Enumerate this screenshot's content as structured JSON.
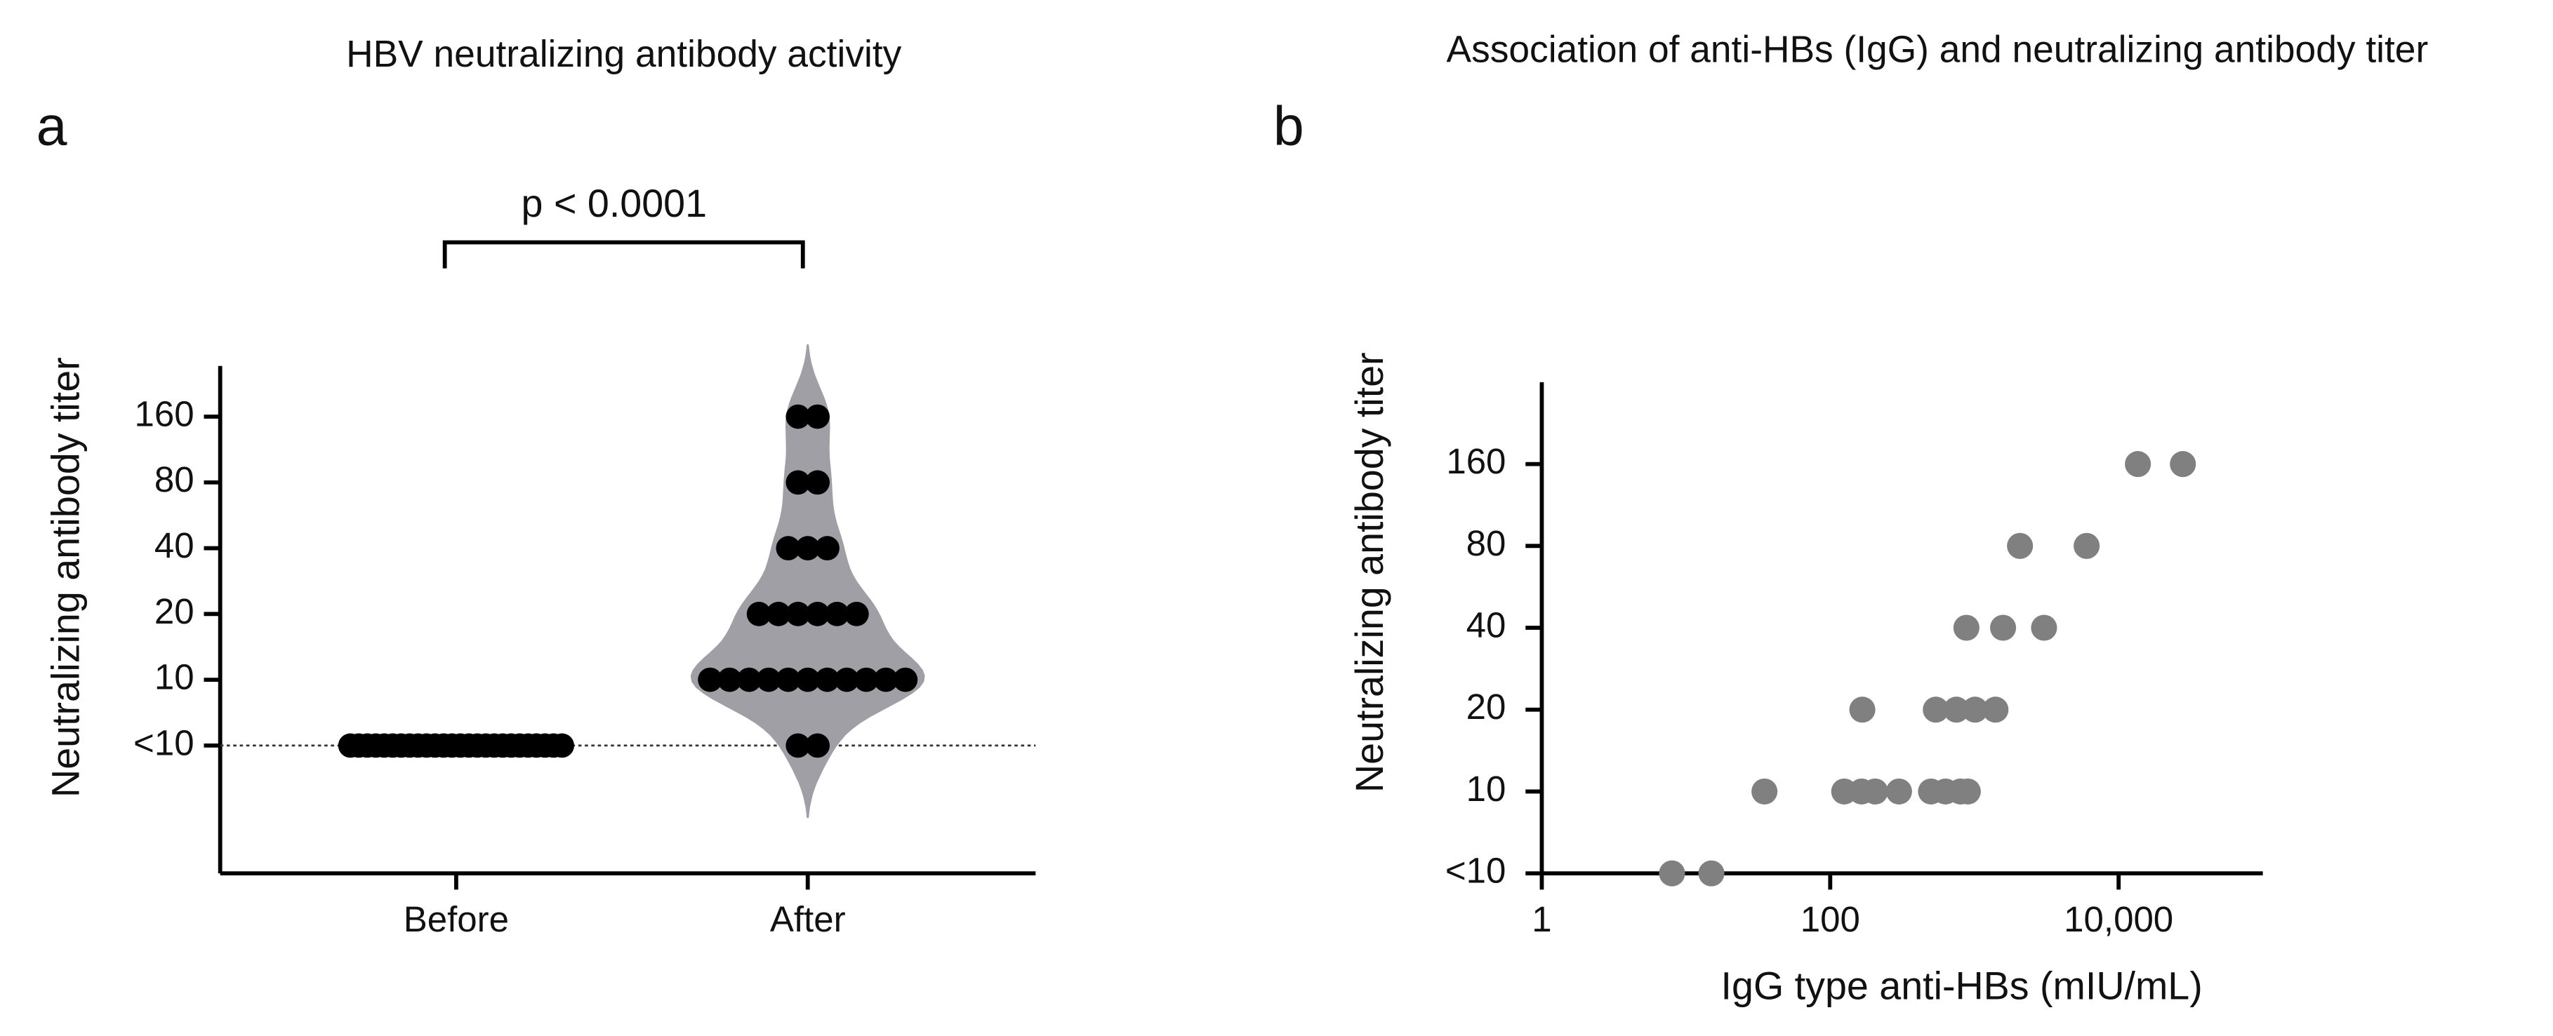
{
  "chart_data": [
    {
      "type": "dot",
      "panel": "a",
      "title": "HBV neutralizing antibody activity",
      "ylabel": "Neutralizing antibody titer",
      "annotation": "p < 0.0001",
      "categories": [
        "Before",
        "After"
      ],
      "values": [
        [
          5,
          5,
          5,
          5,
          5,
          5,
          5,
          5,
          5,
          5,
          5,
          5,
          5,
          5,
          5,
          5,
          5,
          5,
          5,
          5,
          5,
          5,
          5,
          5,
          5,
          5
        ],
        [
          5,
          5,
          10,
          10,
          10,
          10,
          10,
          10,
          10,
          10,
          10,
          10,
          10,
          20,
          20,
          20,
          20,
          20,
          20,
          40,
          40,
          40,
          80,
          80,
          160,
          160
        ]
      ],
      "color": "#000000",
      "violin_color": "#a09fa6",
      "log_scale_y": 2,
      "ylim": [
        1.3,
        273
      ],
      "yticks": [
        {
          "value": 5,
          "label": "<10"
        },
        10,
        20,
        40,
        80,
        160
      ]
    },
    {
      "type": "scatter",
      "panel": "b",
      "title": "Association of anti-HBs (IgG) and neutralizing antibody titer",
      "xlabel": "IgG type anti-HBs (mIU/mL)",
      "ylabel": "Neutralizing antibody titer",
      "x": [
        8,
        15,
        35,
        125,
        165,
        205,
        300,
        500,
        630,
        800,
        900,
        167,
        540,
        750,
        1010,
        1400,
        880,
        1580,
        3040,
        2070,
        6000,
        13600,
        27900
      ],
      "y": [
        5,
        5,
        10,
        10,
        10,
        10,
        10,
        10,
        10,
        10,
        10,
        20,
        20,
        20,
        20,
        20,
        40,
        40,
        40,
        80,
        80,
        160,
        160
      ],
      "color": "#808080",
      "log_scale_x": 10,
      "log_scale_y": 2,
      "xlim": [
        1,
        100000
      ],
      "xticks": [
        {
          "value": 1,
          "label": "1"
        },
        100,
        {
          "value": 10000,
          "label": "10,000"
        }
      ],
      "ylim": [
        5,
        320
      ],
      "yticks": [
        {
          "value": 5,
          "label": "<10"
        },
        10,
        20,
        40,
        80,
        160
      ]
    }
  ]
}
